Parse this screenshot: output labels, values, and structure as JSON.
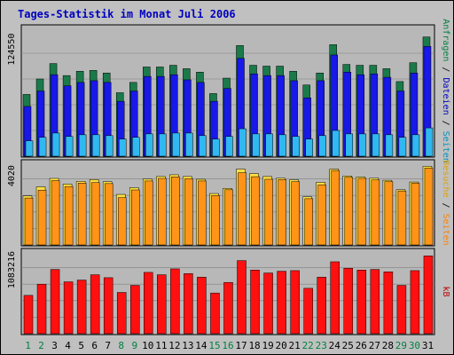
{
  "title": "Tages-Statistik im Monat Juli 2006",
  "colors": {
    "background": "#c0c0c0",
    "panel": "#b8b8b8",
    "title": "#0000c0",
    "grid": "#808080",
    "weekend_label": "#008040",
    "weekday_label": "#000000",
    "anfragen": "#1a7a4a",
    "dateien": "#1818e8",
    "seiten_top": "#30b8f0",
    "besuche": "#ffe040",
    "seiten_mid": "#ff9418",
    "kb": "#ff1010",
    "label_anfragen": "#008040",
    "label_dateien": "#0000c0",
    "label_seiten_top": "#0090c0",
    "label_besuche": "#e0a000",
    "label_seiten_mid": "#ff8000",
    "label_kb": "#c00000"
  },
  "chart_data": [
    {
      "type": "bar",
      "panel": "top",
      "y_tick_label": "124550",
      "ylim": [
        0,
        150000
      ],
      "right_labels": [
        "Anfragen",
        "Dateien",
        "Seiten"
      ],
      "categories": [
        "1",
        "2",
        "3",
        "4",
        "5",
        "6",
        "7",
        "8",
        "9",
        "10",
        "11",
        "12",
        "13",
        "14",
        "15",
        "16",
        "17",
        "18",
        "19",
        "20",
        "21",
        "22",
        "23",
        "24",
        "25",
        "26",
        "27",
        "28",
        "29",
        "30",
        "31"
      ],
      "series": [
        {
          "name": "Anfragen",
          "values": [
            72000,
            90000,
            108000,
            94000,
            99000,
            100000,
            97000,
            74000,
            86000,
            104000,
            104000,
            106000,
            102000,
            98000,
            73000,
            91000,
            129000,
            106000,
            105000,
            105000,
            99000,
            83000,
            97000,
            130000,
            107000,
            106000,
            106000,
            102000,
            87000,
            109000,
            139000
          ]
        },
        {
          "name": "Dateien",
          "values": [
            58000,
            76000,
            95000,
            82000,
            86000,
            88000,
            86000,
            64000,
            76000,
            93000,
            93000,
            95000,
            89000,
            86000,
            64000,
            79000,
            114000,
            96000,
            94000,
            94000,
            88000,
            68000,
            88000,
            118000,
            98000,
            95000,
            96000,
            92000,
            76000,
            97000,
            128000
          ]
        },
        {
          "name": "Seiten",
          "values": [
            18000,
            22000,
            27000,
            23000,
            25000,
            25000,
            24000,
            20000,
            22000,
            26000,
            26000,
            27000,
            27000,
            24000,
            20000,
            23000,
            32000,
            26000,
            26000,
            25000,
            23000,
            20000,
            24000,
            30000,
            26000,
            26000,
            26000,
            25000,
            22000,
            25000,
            33000
          ]
        }
      ]
    },
    {
      "type": "bar",
      "panel": "middle",
      "y_tick_label": "4020",
      "ylim": [
        0,
        4800
      ],
      "right_labels": [
        "Besuche",
        "Seiten"
      ],
      "categories": [
        "1",
        "2",
        "3",
        "4",
        "5",
        "6",
        "7",
        "8",
        "9",
        "10",
        "11",
        "12",
        "13",
        "14",
        "15",
        "16",
        "17",
        "18",
        "19",
        "20",
        "21",
        "22",
        "23",
        "24",
        "25",
        "26",
        "27",
        "28",
        "29",
        "30",
        "31"
      ],
      "series": [
        {
          "name": "Besuche",
          "values": [
            2850,
            3380,
            3870,
            3540,
            3700,
            3800,
            3680,
            2940,
            3330,
            3830,
            3980,
            4080,
            3980,
            3820,
            2990,
            3290,
            4410,
            4150,
            3980,
            3880,
            3790,
            2800,
            3640,
            4410,
            4010,
            3950,
            3880,
            3760,
            3210,
            3660,
            4570
          ]
        },
        {
          "name": "Seiten",
          "values": [
            2730,
            3190,
            3740,
            3400,
            3600,
            3630,
            3570,
            2750,
            3200,
            3720,
            3870,
            3960,
            3850,
            3720,
            2870,
            3210,
            4200,
            3970,
            3820,
            3800,
            3680,
            2690,
            3500,
            4330,
            3930,
            3870,
            3780,
            3680,
            3140,
            3590,
            4470
          ]
        }
      ]
    },
    {
      "type": "bar",
      "panel": "bottom",
      "y_tick_label": "1083216",
      "ylim": [
        0,
        1400000
      ],
      "right_labels": [
        "kB"
      ],
      "categories": [
        "1",
        "2",
        "3",
        "4",
        "5",
        "6",
        "7",
        "8",
        "9",
        "10",
        "11",
        "12",
        "13",
        "14",
        "15",
        "16",
        "17",
        "18",
        "19",
        "20",
        "21",
        "22",
        "23",
        "24",
        "25",
        "26",
        "27",
        "28",
        "29",
        "30",
        "31"
      ],
      "series": [
        {
          "name": "kB",
          "values": [
            650000,
            840000,
            1090000,
            880000,
            910000,
            1000000,
            950000,
            700000,
            820000,
            1040000,
            1000000,
            1100000,
            1020000,
            960000,
            690000,
            870000,
            1240000,
            1080000,
            1030000,
            1060000,
            1070000,
            770000,
            960000,
            1220000,
            1110000,
            1080000,
            1090000,
            1050000,
            820000,
            1070000,
            1320000
          ]
        }
      ]
    }
  ],
  "x_labels": [
    {
      "text": "1",
      "weekend": true
    },
    {
      "text": "2",
      "weekend": true
    },
    {
      "text": "3",
      "weekend": false
    },
    {
      "text": "4",
      "weekend": false
    },
    {
      "text": "5",
      "weekend": false
    },
    {
      "text": "6",
      "weekend": false
    },
    {
      "text": "7",
      "weekend": false
    },
    {
      "text": "8",
      "weekend": true
    },
    {
      "text": "9",
      "weekend": true
    },
    {
      "text": "10",
      "weekend": false
    },
    {
      "text": "11",
      "weekend": false
    },
    {
      "text": "12",
      "weekend": false
    },
    {
      "text": "13",
      "weekend": false
    },
    {
      "text": "14",
      "weekend": false
    },
    {
      "text": "15",
      "weekend": true
    },
    {
      "text": "16",
      "weekend": true
    },
    {
      "text": "17",
      "weekend": false
    },
    {
      "text": "18",
      "weekend": false
    },
    {
      "text": "19",
      "weekend": false
    },
    {
      "text": "20",
      "weekend": false
    },
    {
      "text": "21",
      "weekend": false
    },
    {
      "text": "22",
      "weekend": true
    },
    {
      "text": "23",
      "weekend": true
    },
    {
      "text": "24",
      "weekend": false
    },
    {
      "text": "25",
      "weekend": false
    },
    {
      "text": "26",
      "weekend": false
    },
    {
      "text": "27",
      "weekend": false
    },
    {
      "text": "28",
      "weekend": false
    },
    {
      "text": "29",
      "weekend": true
    },
    {
      "text": "30",
      "weekend": true
    },
    {
      "text": "31",
      "weekend": false
    }
  ]
}
